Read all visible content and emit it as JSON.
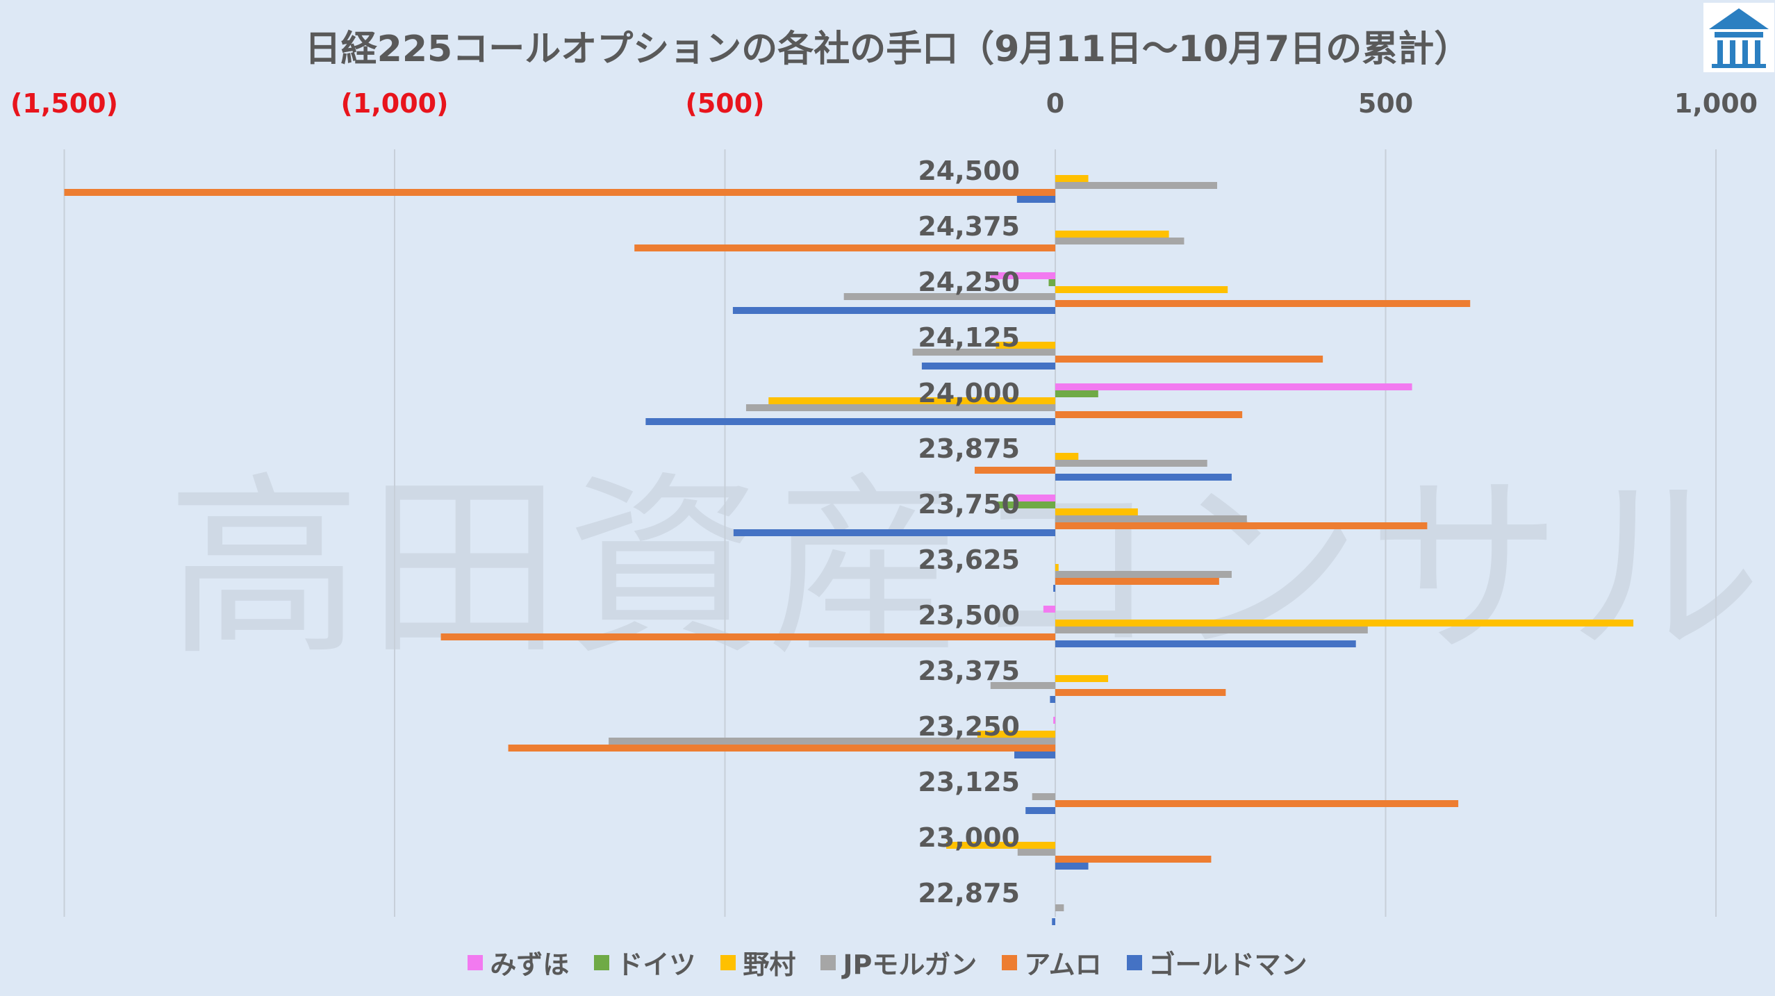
{
  "title": "日経225コールオプションの各社の手口（9月11日～10月7日の累計）",
  "watermark": "高田資産コンサル",
  "colors": {
    "negative_tick": "#e8141c",
    "positive_tick": "#595959",
    "grid": "#c7cfd9"
  },
  "chart_data": {
    "type": "bar",
    "orientation": "horizontal",
    "title": "日経225コールオプションの各社の手口（9月11日～10月7日の累計）",
    "xlim": [
      -1500,
      1000
    ],
    "x_ticks": [
      {
        "value": -1500,
        "label": "(1,500)"
      },
      {
        "value": -1000,
        "label": "(1,000)"
      },
      {
        "value": -500,
        "label": "(500)"
      },
      {
        "value": 0,
        "label": "0"
      },
      {
        "value": 500,
        "label": "500"
      },
      {
        "value": 1000,
        "label": "1,000"
      }
    ],
    "grid": true,
    "legend_position": "bottom",
    "categories": [
      "24,500",
      "24,375",
      "24,250",
      "24,125",
      "24,000",
      "23,875",
      "23,750",
      "23,625",
      "23,500",
      "23,375",
      "23,250",
      "23,125",
      "23,000",
      "22,875"
    ],
    "series": [
      {
        "name": "みずほ",
        "color": "#f27af0",
        "values": [
          0,
          0,
          -98,
          0,
          540,
          0,
          -60,
          0,
          -18,
          0,
          -3,
          0,
          0,
          0
        ]
      },
      {
        "name": "ドイツ",
        "color": "#6faa46",
        "values": [
          0,
          0,
          -10,
          0,
          65,
          0,
          -90,
          0,
          0,
          0,
          0,
          0,
          0,
          0
        ]
      },
      {
        "name": "野村",
        "color": "#ffc000",
        "values": [
          50,
          172,
          261,
          -90,
          -434,
          35,
          125,
          5,
          875,
          80,
          -118,
          0,
          -165,
          0
        ]
      },
      {
        "name": "JPモルガン",
        "color": "#a6a6a6",
        "values": [
          245,
          195,
          -320,
          -216,
          -468,
          230,
          290,
          267,
          473,
          -98,
          -676,
          -35,
          -57,
          13
        ]
      },
      {
        "name": "アムロ",
        "color": "#ed7d31",
        "values": [
          -1500,
          -637,
          628,
          405,
          283,
          -122,
          563,
          248,
          -930,
          258,
          -828,
          610,
          236,
          0
        ]
      },
      {
        "name": "ゴールドマン",
        "color": "#4472c4",
        "values": [
          -58,
          0,
          -488,
          -202,
          -620,
          267,
          -487,
          -3,
          455,
          -8,
          -62,
          -45,
          50,
          -5
        ]
      }
    ]
  }
}
